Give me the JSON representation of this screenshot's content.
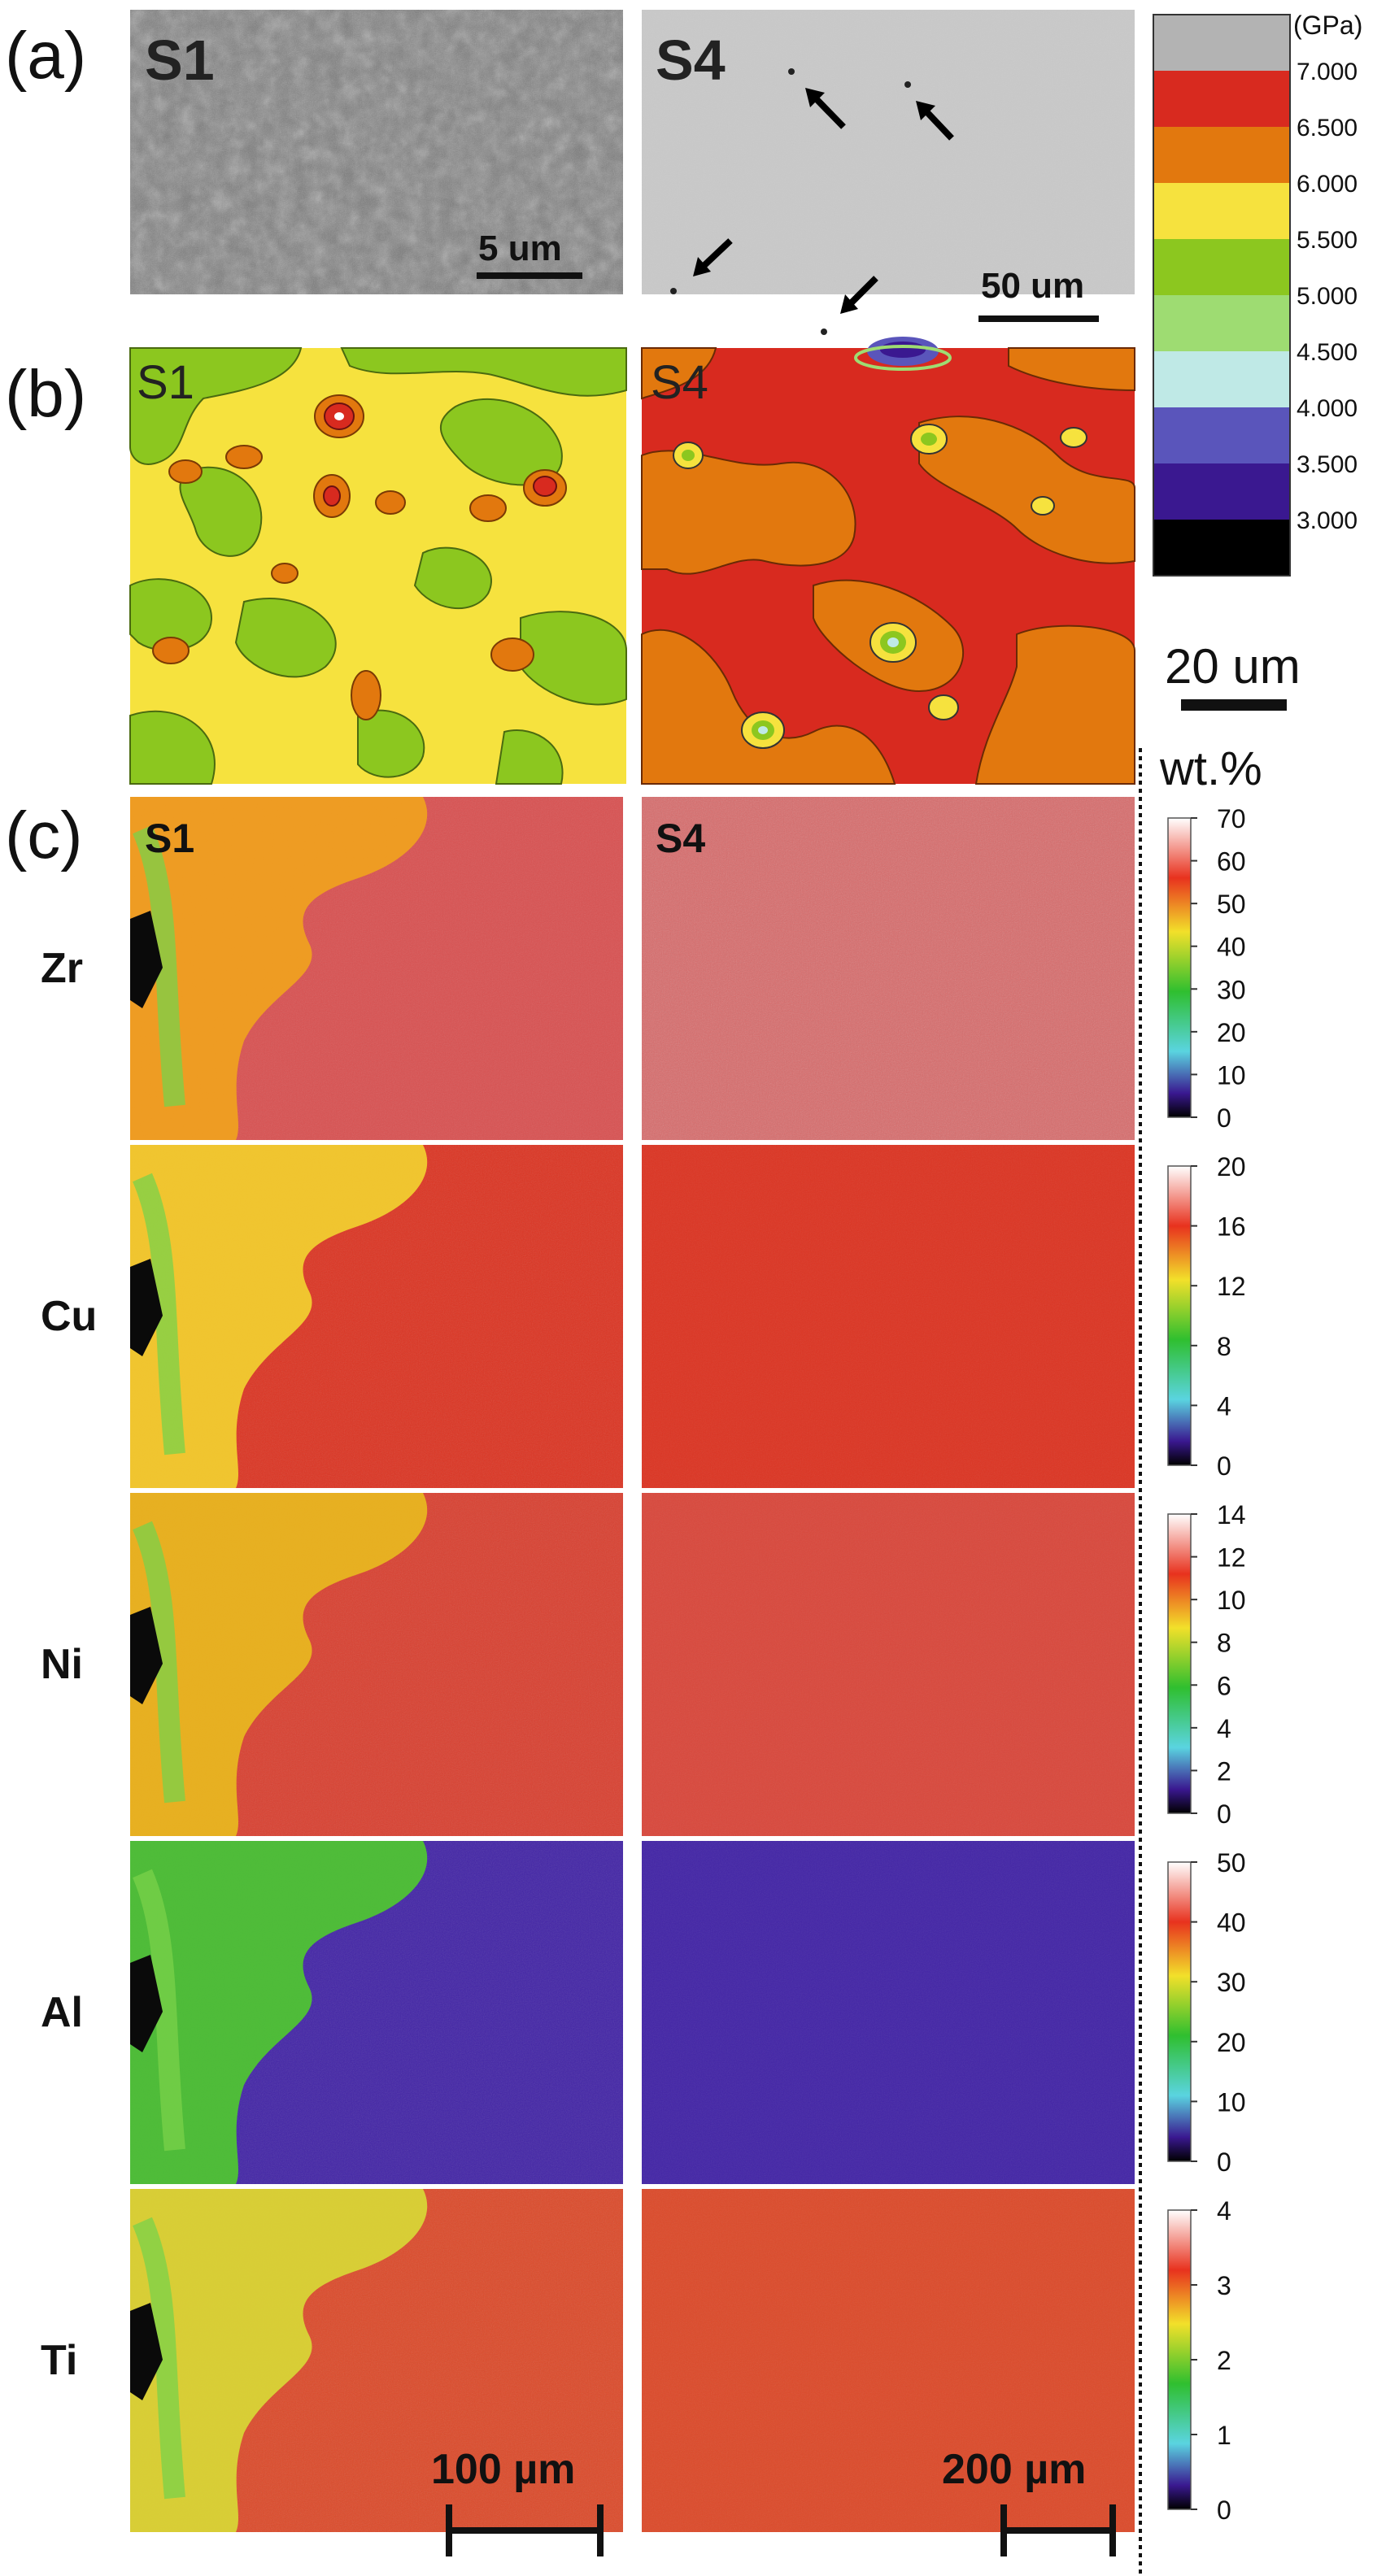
{
  "figure": {
    "panels": [
      {
        "label": "(a)",
        "images": [
          {
            "sample": "S1",
            "scale_bar": "5 um"
          },
          {
            "sample": "S4",
            "scale_bar": "50 um"
          }
        ]
      },
      {
        "label": "(b)",
        "images": [
          {
            "sample": "S1"
          },
          {
            "sample": "S4"
          }
        ]
      },
      {
        "label": "(c)",
        "images": [
          {
            "sample": "S1",
            "scale_bar": "100 µm"
          },
          {
            "sample": "S4",
            "scale_bar": "200 µm"
          }
        ]
      }
    ],
    "hardness_colorbar": {
      "unit": "(GPa)",
      "levels": [
        "7.000",
        "6.500",
        "6.000",
        "5.500",
        "5.000",
        "4.500",
        "4.000",
        "3.500",
        "3.000"
      ],
      "colors": [
        "#b3b3b3",
        "#d82a1f",
        "#e2780e",
        "#f6e23e",
        "#8cc71f",
        "#9edc72",
        "#bfe9e6",
        "#5a55bb",
        "#3a1890",
        "#000000"
      ],
      "scale_bar": "20 um"
    },
    "composition": {
      "unit": "wt.%",
      "elements": [
        {
          "name": "Zr",
          "ticks": [
            "70",
            "60",
            "50",
            "40",
            "30",
            "20",
            "10",
            "0"
          ]
        },
        {
          "name": "Cu",
          "ticks": [
            "20",
            "16",
            "12",
            "8",
            "4",
            "0"
          ]
        },
        {
          "name": "Ni",
          "ticks": [
            "14",
            "12",
            "10",
            "8",
            "6",
            "4",
            "2",
            "0"
          ]
        },
        {
          "name": "Al",
          "ticks": [
            "50",
            "40",
            "30",
            "20",
            "10",
            "0"
          ]
        },
        {
          "name": "Ti",
          "ticks": [
            "4",
            "3",
            "2",
            "1",
            "0"
          ]
        }
      ]
    }
  }
}
